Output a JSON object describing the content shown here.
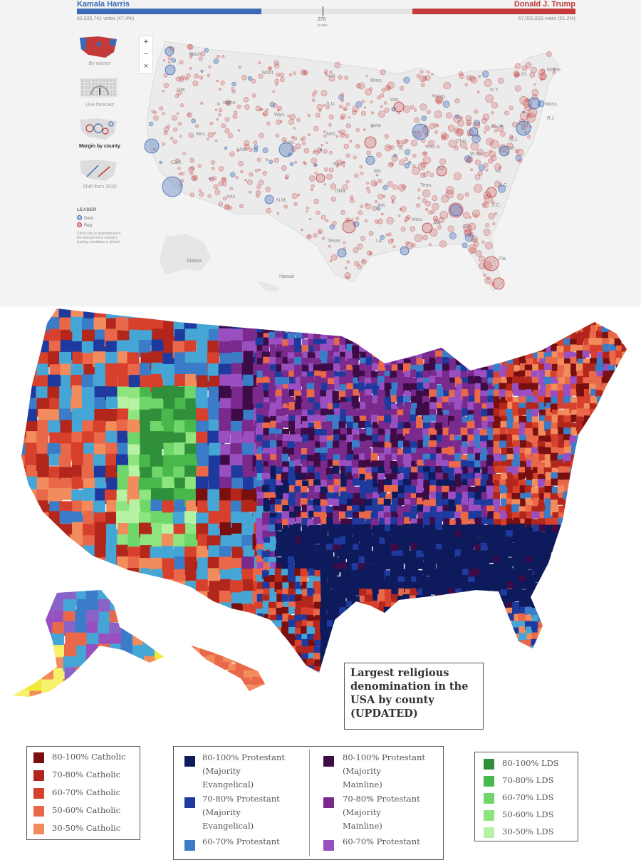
{
  "election": {
    "candidate_left": "Kamala Harris",
    "candidate_right": "Donald J. Trump",
    "votes_left": "62,035,741 votes (47.4%)",
    "votes_right": "67,002,833 votes (51.2%)",
    "dem_share": 0.474,
    "rep_share": 0.512,
    "threshold": "270",
    "threshold_sub": "to win",
    "views": [
      {
        "label": "By winner",
        "icon": "us-map-winner-thumbnail"
      },
      {
        "label": "Live forecast",
        "icon": "forecast-gauge-thumbnail"
      },
      {
        "label": "Margin by county",
        "icon": "margin-bubble-map-thumbnail"
      },
      {
        "label": "Shift from 2020",
        "icon": "shift-arrows-thumbnail"
      }
    ],
    "zoom": {
      "in": "+",
      "out": "−",
      "reset": "×"
    },
    "legend_title": "LEADER",
    "legend_dem": "Dem.",
    "legend_rep": "Rep.",
    "legend_note": "Circle size is proportional to the amount each county's leading candidate is ahead.",
    "state_labels": [
      "Wash.",
      "Mont.",
      "N.D.",
      "Minn.",
      "Ore.",
      "Idaho",
      "Wyo.",
      "S.D.",
      "Wis.",
      "Mich.",
      "N.Y.",
      "Vt.",
      "Maine",
      "Mass.",
      "R.I.",
      "Nev.",
      "Utah",
      "Colo.",
      "Neb.",
      "Iowa",
      "Ill.",
      "Ind.",
      "Ohio",
      "Pa.",
      "N.J.",
      "Del.",
      "Calif.",
      "Kan.",
      "Mo.",
      "Ky.",
      "W.Va.",
      "Va.",
      "Ariz.",
      "N.M.",
      "Okla.",
      "Ark.",
      "Tenn.",
      "N.C.",
      "S.C.",
      "Texas",
      "La.",
      "Miss.",
      "Ala.",
      "Ga.",
      "Fla.",
      "Alaska",
      "Hawaii"
    ],
    "colors": {
      "dem": "#3b6bb5",
      "rep": "#c43a3a"
    }
  },
  "religion": {
    "title_lines": [
      "Largest religious",
      "denomination in the",
      "USA by county",
      "(UPDATED)"
    ],
    "catholic": [
      {
        "label": "80-100% Catholic",
        "color": "#7a0f0f"
      },
      {
        "label": "70-80% Catholic",
        "color": "#b3261c"
      },
      {
        "label": "60-70% Catholic",
        "color": "#d6402c"
      },
      {
        "label": "50-60% Catholic",
        "color": "#e9684a"
      },
      {
        "label": "30-50% Catholic",
        "color": "#f28c5c"
      }
    ],
    "protestant_evangelical": [
      {
        "lines": [
          "80-100% Protestant",
          "(Majority",
          "Evangelical)"
        ],
        "color": "#0d1a5c"
      },
      {
        "lines": [
          "70-80% Protestant",
          "(Majority",
          "Evangelical)"
        ],
        "color": "#1f3a9e"
      },
      {
        "lines": [
          "60-70% Protestant"
        ],
        "color": "#3b7cc8"
      }
    ],
    "protestant_mainline": [
      {
        "lines": [
          "80-100% Protestant",
          "(Majority",
          "Mainline)"
        ],
        "color": "#3d0b45"
      },
      {
        "lines": [
          "70-80% Protestant",
          "(Majority",
          "Mainline)"
        ],
        "color": "#7a2a8c"
      },
      {
        "lines": [
          "60-70% Protestant"
        ],
        "color": "#9a4fc0"
      }
    ],
    "lds": [
      {
        "label": "80-100% LDS",
        "color": "#2f8f3a"
      },
      {
        "label": "70-80% LDS",
        "color": "#48b84c"
      },
      {
        "label": "60-70% LDS",
        "color": "#6fd66a"
      },
      {
        "label": "50-60% LDS",
        "color": "#8ee57f"
      },
      {
        "label": "30-50% LDS",
        "color": "#b7f2a4"
      }
    ]
  }
}
